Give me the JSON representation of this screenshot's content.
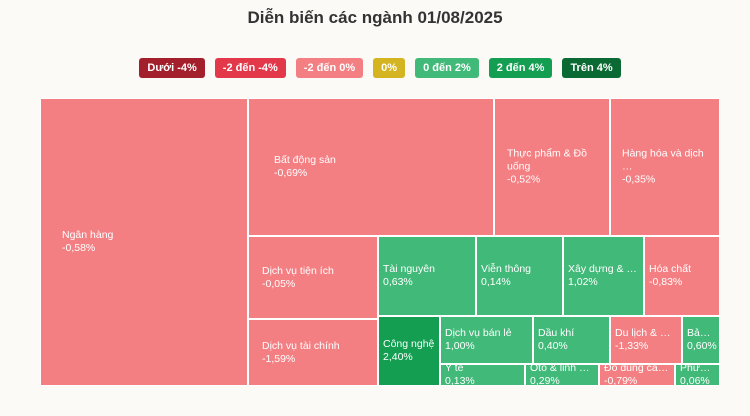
{
  "header": {
    "title": "Diễn biến các ngành 01/08/2025"
  },
  "legend": {
    "items": [
      {
        "label": "Dưới -4%",
        "color": "#a31f2b"
      },
      {
        "label": "-2 đến -4%",
        "color": "#e3384a"
      },
      {
        "label": "-2 đến 0%",
        "color": "#f47f83"
      },
      {
        "label": "0%",
        "color": "#d4b420"
      },
      {
        "label": "0 đến 2%",
        "color": "#41b978"
      },
      {
        "label": "2 đến 4%",
        "color": "#139e52"
      },
      {
        "label": "Trên 4%",
        "color": "#0b6a33"
      }
    ]
  },
  "chart_data": {
    "type": "treemap",
    "title": "Diễn biến các ngành 01/08/2025",
    "sectors": [
      {
        "name": "Ngân hàng",
        "change": "-0,58%",
        "value": -0.58,
        "color": "#f47f83"
      },
      {
        "name": "Bất động sản",
        "change": "-0,69%",
        "value": -0.69,
        "color": "#f47f83"
      },
      {
        "name": "Thực phẩm & Đồ uống",
        "change": "-0,52%",
        "value": -0.52,
        "color": "#f47f83"
      },
      {
        "name": "Hàng hóa và dịch …",
        "change": "-0,35%",
        "value": -0.35,
        "color": "#f47f83"
      },
      {
        "name": "Dịch vụ tiện ích",
        "change": "-0,05%",
        "value": -0.05,
        "color": "#f47f83"
      },
      {
        "name": "Tài nguyên",
        "change": "0,63%",
        "value": 0.63,
        "color": "#41b978"
      },
      {
        "name": "Viễn thông",
        "change": "0,14%",
        "value": 0.14,
        "color": "#41b978"
      },
      {
        "name": "Xây dựng & Vật liệu",
        "change": "1,02%",
        "value": 1.02,
        "color": "#41b978"
      },
      {
        "name": "Hóa chất",
        "change": "-0,83%",
        "value": -0.83,
        "color": "#f47f83"
      },
      {
        "name": "Dịch vụ tài chính",
        "change": "-1,59%",
        "value": -1.59,
        "color": "#f47f83"
      },
      {
        "name": "Công nghệ",
        "change": "2,40%",
        "value": 2.4,
        "color": "#139e52"
      },
      {
        "name": "Dịch vụ bán lẻ",
        "change": "1,00%",
        "value": 1.0,
        "color": "#41b978"
      },
      {
        "name": "Dầu khí",
        "change": "0,40%",
        "value": 0.4,
        "color": "#41b978"
      },
      {
        "name": "Du lịch & G…",
        "change": "-1,33%",
        "value": -1.33,
        "color": "#f47f83"
      },
      {
        "name": "Bảo …",
        "change": "0,60%",
        "value": 0.6,
        "color": "#41b978"
      },
      {
        "name": "Y tế",
        "change": "0,13%",
        "value": 0.13,
        "color": "#41b978"
      },
      {
        "name": "Ôtô & linh ki…",
        "change": "0,29%",
        "value": 0.29,
        "color": "#41b978"
      },
      {
        "name": "Đồ dùng cá nhân và đồ gia dụng",
        "change": "-0,79%",
        "value": -0.79,
        "color": "#f47f83"
      },
      {
        "name": "Phươ…",
        "change": "0,06%",
        "value": 0.06,
        "color": "#41b978"
      }
    ]
  }
}
